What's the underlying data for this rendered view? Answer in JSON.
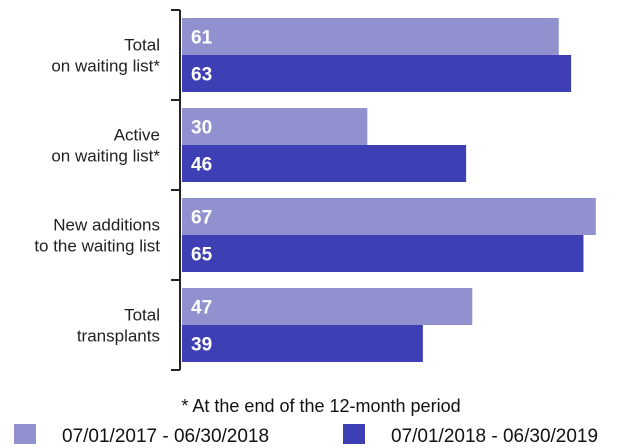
{
  "chart_data": {
    "type": "bar",
    "orientation": "horizontal",
    "categories": [
      [
        "Total",
        "on waiting list*"
      ],
      [
        "Active",
        "on waiting list*"
      ],
      [
        "New additions",
        "to the waiting list"
      ],
      [
        "Total",
        "transplants"
      ]
    ],
    "series": [
      {
        "name": "07/01/2017 - 06/30/2018",
        "values": [
          61,
          30,
          67,
          47
        ],
        "color": "#9191cf"
      },
      {
        "name": "07/01/2018 - 06/30/2019",
        "values": [
          63,
          46,
          65,
          39
        ],
        "color": "#3f3fb5"
      }
    ],
    "xlim": [
      0,
      68
    ],
    "grid": false,
    "footnote": "* At the end of the 12-month period",
    "legend_position": "bottom"
  }
}
